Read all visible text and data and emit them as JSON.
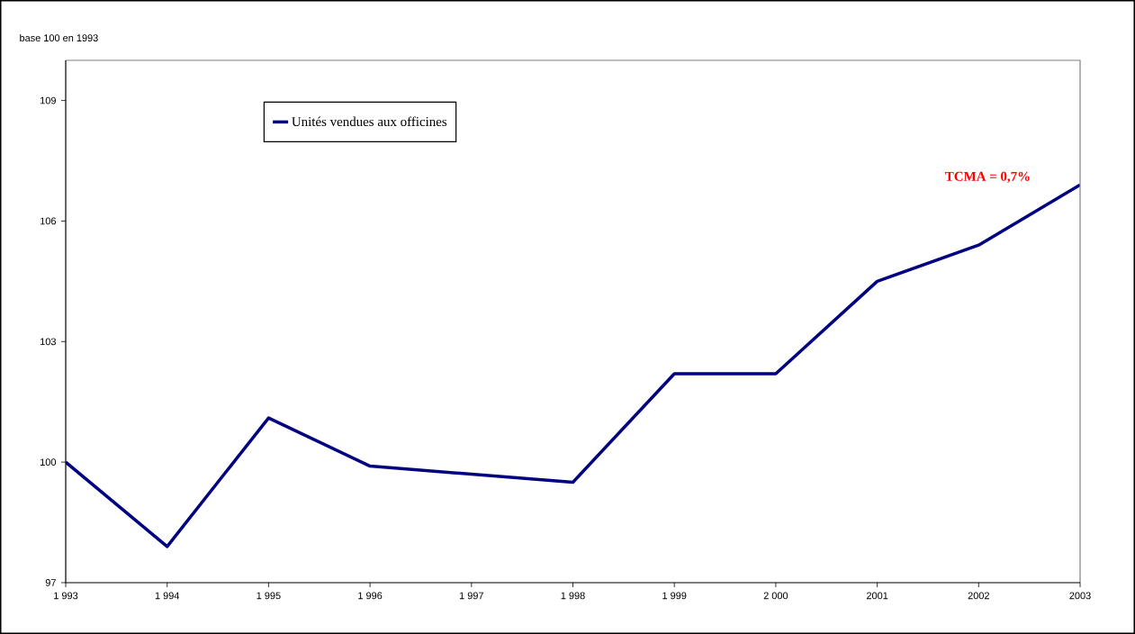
{
  "chart_data": {
    "type": "line",
    "ylabel": "base 100 en 1993",
    "categories": [
      "1 993",
      "1 994",
      "1 995",
      "1 996",
      "1 997",
      "1 998",
      "1 999",
      "2 000",
      "2001",
      "2002",
      "2003"
    ],
    "series": [
      {
        "name": "Unités vendues aux officines",
        "color": "#000080",
        "values": [
          100,
          97.9,
          101.1,
          99.9,
          99.7,
          99.5,
          102.2,
          102.2,
          104.5,
          105.4,
          106.9
        ]
      }
    ],
    "ylim": [
      97,
      110
    ],
    "yticks": [
      97,
      100,
      103,
      106,
      109
    ],
    "legend": "top left",
    "grid": false,
    "annotations": [
      "TCMA = 0,7%"
    ]
  }
}
